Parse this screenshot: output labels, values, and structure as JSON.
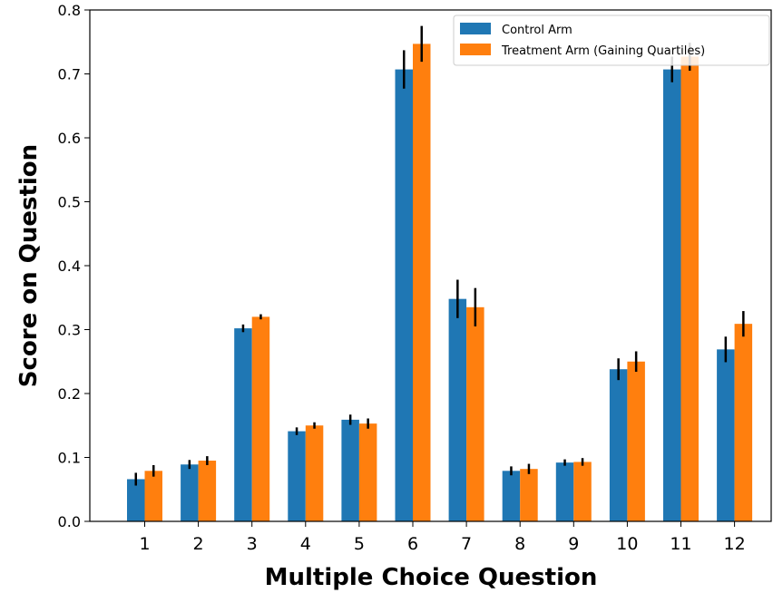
{
  "chart_data": {
    "type": "bar",
    "title": "",
    "xlabel": "Multiple Choice Question",
    "ylabel": "Score on Question",
    "categories": [
      "1",
      "2",
      "3",
      "4",
      "5",
      "6",
      "7",
      "8",
      "9",
      "10",
      "11",
      "12"
    ],
    "ylim": [
      0,
      0.8
    ],
    "yticks": [
      "0.0",
      "0.1",
      "0.2",
      "0.3",
      "0.4",
      "0.5",
      "0.6",
      "0.7",
      "0.8"
    ],
    "grid": false,
    "legend_position": "top-right",
    "series": [
      {
        "name": "Control Arm",
        "color": "#1f77b4",
        "values": [
          0.066,
          0.089,
          0.302,
          0.141,
          0.159,
          0.707,
          0.348,
          0.079,
          0.092,
          0.238,
          0.707,
          0.269
        ],
        "errors": [
          0.01,
          0.007,
          0.006,
          0.006,
          0.008,
          0.03,
          0.03,
          0.007,
          0.005,
          0.017,
          0.02,
          0.02
        ]
      },
      {
        "name": "Treatment Arm (Gaining Quartiles)",
        "color": "#ff7f0e",
        "values": [
          0.079,
          0.095,
          0.32,
          0.15,
          0.153,
          0.747,
          0.335,
          0.082,
          0.093,
          0.25,
          0.727,
          0.309
        ],
        "errors": [
          0.009,
          0.007,
          0.004,
          0.005,
          0.008,
          0.028,
          0.03,
          0.008,
          0.006,
          0.016,
          0.022,
          0.02
        ]
      }
    ]
  }
}
